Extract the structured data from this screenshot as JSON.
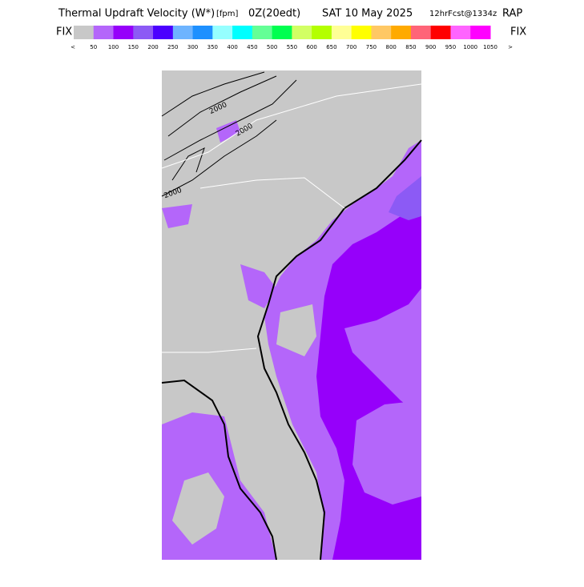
{
  "header": {
    "title": "Thermal Updraft Velocity (W*)",
    "units": "[fpm]",
    "valid": "0Z(20edt)",
    "date": "SAT 10 May 2025",
    "forecast": "12hrFcst@1334z",
    "model": "RAP"
  },
  "legend": {
    "left": "FIX",
    "right": "FIX",
    "low": "<",
    "high": ">",
    "colors": [
      "#c8c8c8",
      "#b466fa",
      "#9600fa",
      "#8c5af5",
      "#4b00ff",
      "#6eb4ff",
      "#1e90ff",
      "#96ffff",
      "#00ffff",
      "#64ff96",
      "#00ff50",
      "#d2ff64",
      "#b4ff00",
      "#ffff96",
      "#ffff00",
      "#ffc864",
      "#ffaa00",
      "#ff6478",
      "#ff0000",
      "#ff64ff",
      "#ff00ff"
    ],
    "labels": [
      "50",
      "100",
      "150",
      "200",
      "250",
      "300",
      "350",
      "400",
      "450",
      "500",
      "550",
      "600",
      "650",
      "700",
      "750",
      "800",
      "850",
      "900",
      "950",
      "1000",
      "1050"
    ]
  },
  "map": {
    "contour_labels": [
      "2000",
      "2000",
      "2000"
    ]
  }
}
